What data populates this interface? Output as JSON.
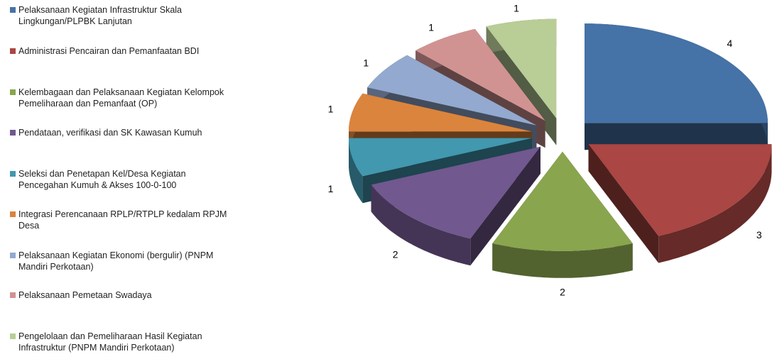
{
  "chart_data": {
    "type": "pie",
    "categories": [
      "Pelaksanaan Kegiatan Infrastruktur Skala Lingkungan/PLPBK Lanjutan",
      "Administrasi Pencairan dan Pemanfaatan BDI",
      "Kelembagaan dan Pelaksanaan Kegiatan Kelompok Pemeliharaan dan Pemanfaat (OP)",
      "Pendataan, verifikasi dan SK Kawasan Kumuh",
      "Seleksi dan Penetapan Kel/Desa Kegiatan Pencegahan Kumuh & Akses 100-0-100",
      "Integrasi Perencanaan RPLP/RTPLP kedalam RPJM Desa",
      "Pelaksanaan Kegiatan Ekonomi (bergulir) (PNPM Mandiri Perkotaan)",
      "Pelaksanaan Pemetaan Swadaya",
      "Pengelolaan dan Pemeliharaan Hasil Kegiatan Infrastruktur (PNPM Mandiri Perkotaan)"
    ],
    "values": [
      4,
      3,
      2,
      2,
      1,
      1,
      1,
      1,
      1
    ],
    "colors": [
      "#4572a7",
      "#aa4643",
      "#89a54e",
      "#71588f",
      "#4198af",
      "#db843d",
      "#93a9cf",
      "#d19392",
      "#b9cd96"
    ],
    "legend": "left"
  }
}
